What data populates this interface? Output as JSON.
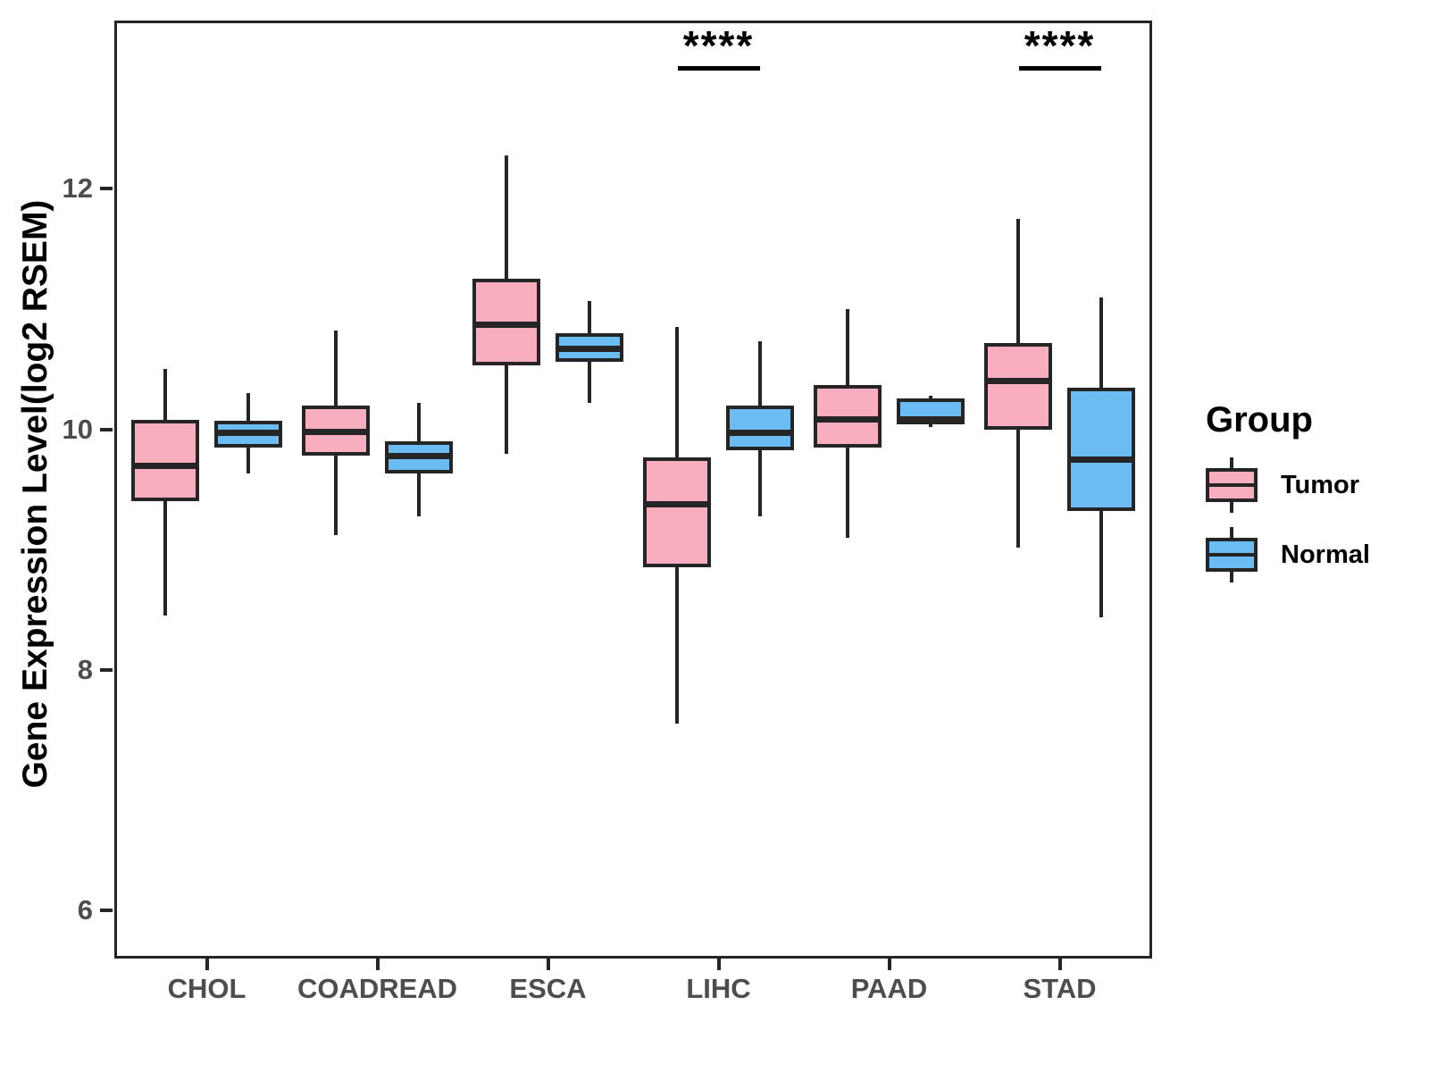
{
  "figure": {
    "y_axis_title": "Gene Expression Level(log2 RSEM)",
    "legend": {
      "title": "Group",
      "items": [
        {
          "label": "Tumor",
          "color": "#F9AEC0"
        },
        {
          "label": "Normal",
          "color": "#6CBCF4"
        }
      ]
    }
  },
  "chart_data": {
    "type": "boxplot",
    "title": "",
    "xlabel": "",
    "ylabel": "Gene Expression Level(log2 RSEM)",
    "ylim": [
      5.6,
      13.4
    ],
    "yticks": [
      6,
      8,
      10,
      12
    ],
    "grid": false,
    "legend_position": "right",
    "categories": [
      "CHOL",
      "COADREAD",
      "ESCA",
      "LIHC",
      "PAAD",
      "STAD"
    ],
    "groups": [
      {
        "name": "Tumor",
        "color": "#F9AEC0"
      },
      {
        "name": "Normal",
        "color": "#6CBCF4"
      }
    ],
    "series": [
      {
        "group": "Tumor",
        "stats": [
          {
            "category": "CHOL",
            "min": 8.45,
            "q1": 9.4,
            "median": 9.7,
            "q3": 10.08,
            "max": 10.5
          },
          {
            "category": "COADREAD",
            "min": 9.12,
            "q1": 9.78,
            "median": 9.98,
            "q3": 10.2,
            "max": 10.82
          },
          {
            "category": "ESCA",
            "min": 9.8,
            "q1": 10.53,
            "median": 10.87,
            "q3": 11.25,
            "max": 12.28
          },
          {
            "category": "LIHC",
            "min": 7.55,
            "q1": 8.85,
            "median": 9.38,
            "q3": 9.77,
            "max": 10.85
          },
          {
            "category": "PAAD",
            "min": 9.1,
            "q1": 9.85,
            "median": 10.08,
            "q3": 10.37,
            "max": 11.0
          },
          {
            "category": "STAD",
            "min": 9.02,
            "q1": 10.0,
            "median": 10.4,
            "q3": 10.72,
            "max": 11.75
          }
        ]
      },
      {
        "group": "Normal",
        "stats": [
          {
            "category": "CHOL",
            "min": 9.63,
            "q1": 9.85,
            "median": 9.97,
            "q3": 10.07,
            "max": 10.3
          },
          {
            "category": "COADREAD",
            "min": 9.28,
            "q1": 9.63,
            "median": 9.78,
            "q3": 9.9,
            "max": 10.22
          },
          {
            "category": "ESCA",
            "min": 10.22,
            "q1": 10.56,
            "median": 10.67,
            "q3": 10.8,
            "max": 11.07
          },
          {
            "category": "LIHC",
            "min": 9.28,
            "q1": 9.83,
            "median": 9.97,
            "q3": 10.2,
            "max": 10.73
          },
          {
            "category": "PAAD",
            "min": 10.02,
            "q1": 10.04,
            "median": 10.08,
            "q3": 10.26,
            "max": 10.28
          },
          {
            "category": "STAD",
            "min": 8.44,
            "q1": 9.32,
            "median": 9.75,
            "q3": 10.35,
            "max": 11.1
          }
        ]
      }
    ],
    "annotations": [
      {
        "category": "LIHC",
        "text": "****"
      },
      {
        "category": "STAD",
        "text": "****"
      }
    ]
  }
}
